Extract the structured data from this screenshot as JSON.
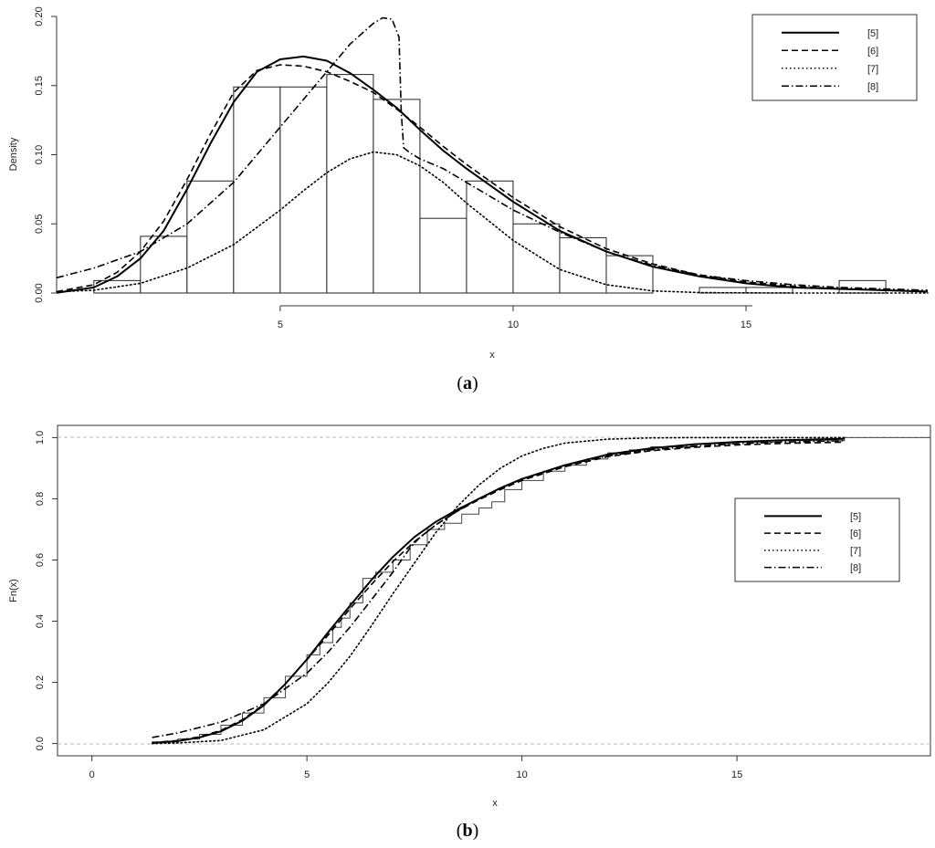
{
  "chart_data": [
    {
      "id": "a",
      "type": "histogram-with-density-curves",
      "caption_letter": "a",
      "xlabel": "x",
      "ylabel": "Density",
      "xticks": [
        5,
        10,
        15
      ],
      "yticks": [
        0.0,
        0.05,
        0.1,
        0.15,
        0.2
      ],
      "ytick_labels": [
        "0.00",
        "0.05",
        "0.10",
        "0.15",
        "0.20"
      ],
      "xlim": [
        0.2,
        18.9
      ],
      "ylim": [
        0,
        0.2
      ],
      "grid": false,
      "legend_position": "top-right",
      "histogram": {
        "bin_edges": [
          1,
          2,
          3,
          4,
          5,
          6,
          7,
          8,
          9,
          10,
          11,
          12,
          13,
          14,
          15,
          16,
          17,
          18
        ],
        "densities": [
          0.009,
          0.041,
          0.081,
          0.149,
          0.149,
          0.158,
          0.14,
          0.054,
          0.081,
          0.05,
          0.04,
          0.027,
          0.0,
          0.004,
          0.004,
          0.0,
          0.009
        ]
      },
      "series": [
        {
          "name": "[5]",
          "style": "solid",
          "x": [
            0.2,
            1,
            1.5,
            2,
            2.5,
            3,
            3.5,
            4,
            4.5,
            5,
            5.5,
            6,
            6.5,
            7,
            7.5,
            8,
            8.5,
            9,
            9.5,
            10,
            11,
            12,
            13,
            14,
            15,
            16,
            17,
            18,
            18.9
          ],
          "y": [
            0.0002,
            0.004,
            0.012,
            0.025,
            0.045,
            0.075,
            0.108,
            0.138,
            0.16,
            0.169,
            0.171,
            0.168,
            0.159,
            0.147,
            0.134,
            0.118,
            0.103,
            0.09,
            0.078,
            0.066,
            0.045,
            0.03,
            0.019,
            0.012,
            0.007,
            0.004,
            0.003,
            0.002,
            0.001
          ]
        },
        {
          "name": "[6]",
          "style": "dashed",
          "x": [
            0.2,
            1,
            1.5,
            2,
            2.5,
            3,
            3.5,
            4,
            4.5,
            5,
            5.5,
            6,
            6.5,
            7,
            7.5,
            8,
            8.5,
            9,
            9.5,
            10,
            11,
            12,
            13,
            14,
            15,
            16,
            17,
            18,
            18.9
          ],
          "y": [
            0.001,
            0.006,
            0.015,
            0.03,
            0.052,
            0.082,
            0.115,
            0.145,
            0.161,
            0.165,
            0.164,
            0.16,
            0.153,
            0.145,
            0.133,
            0.12,
            0.106,
            0.093,
            0.081,
            0.069,
            0.048,
            0.032,
            0.021,
            0.013,
            0.008,
            0.005,
            0.003,
            0.002,
            0.001
          ]
        },
        {
          "name": "[7]",
          "style": "dotted",
          "x": [
            0.2,
            1,
            2,
            3,
            4,
            5,
            5.5,
            6,
            6.5,
            7,
            7.5,
            8,
            8.5,
            9,
            10,
            11,
            12,
            13,
            14,
            15,
            16,
            17,
            18,
            18.9
          ],
          "y": [
            0.001,
            0.002,
            0.007,
            0.018,
            0.035,
            0.06,
            0.074,
            0.087,
            0.097,
            0.102,
            0.1,
            0.092,
            0.08,
            0.065,
            0.038,
            0.017,
            0.006,
            0.0015,
            0.0003,
            0.0001,
            0,
            0,
            0,
            0
          ]
        },
        {
          "name": "[8]",
          "style": "dashdot",
          "x": [
            0.2,
            1,
            2,
            3,
            4,
            5,
            5.5,
            6,
            6.5,
            7,
            7.2,
            7.4,
            7.55,
            7.6,
            7.65,
            7.8,
            8,
            8.5,
            9,
            9.5,
            10,
            11,
            12,
            13,
            14,
            15,
            16,
            17,
            18,
            18.9
          ],
          "y": [
            0.011,
            0.018,
            0.03,
            0.05,
            0.08,
            0.12,
            0.14,
            0.16,
            0.18,
            0.195,
            0.199,
            0.198,
            0.185,
            0.13,
            0.105,
            0.101,
            0.097,
            0.09,
            0.08,
            0.07,
            0.06,
            0.044,
            0.03,
            0.02,
            0.013,
            0.009,
            0.006,
            0.004,
            0.003,
            0.002
          ]
        }
      ]
    },
    {
      "id": "b",
      "type": "ecdf-with-cdf-curves",
      "caption_letter": "b",
      "xlabel": "x",
      "ylabel": "Fn(x)",
      "xticks": [
        0,
        5,
        10,
        15
      ],
      "yticks": [
        0.0,
        0.2,
        0.4,
        0.6,
        0.8,
        1.0
      ],
      "ytick_labels": [
        "0.0",
        "0.2",
        "0.4",
        "0.6",
        "0.8",
        "1.0"
      ],
      "xlim": [
        -0.8,
        19.5
      ],
      "ylim": [
        -0.04,
        1.04
      ],
      "grid": false,
      "reference_lines_y": [
        0,
        1
      ],
      "legend_position": "right",
      "ecdf": {
        "x": [
          1.4,
          2.0,
          2.5,
          3.0,
          3.5,
          4.0,
          4.5,
          5.0,
          5.3,
          5.6,
          5.8,
          6.0,
          6.3,
          6.6,
          7.0,
          7.4,
          7.8,
          8.2,
          8.6,
          9.0,
          9.3,
          9.6,
          10.0,
          10.5,
          11.0,
          11.5,
          12.0,
          12.5,
          13.0,
          14.0,
          15.0,
          16.0,
          17.5
        ],
        "y": [
          0.005,
          0.015,
          0.03,
          0.06,
          0.1,
          0.15,
          0.22,
          0.29,
          0.33,
          0.38,
          0.41,
          0.46,
          0.54,
          0.56,
          0.6,
          0.65,
          0.7,
          0.72,
          0.75,
          0.77,
          0.79,
          0.83,
          0.86,
          0.89,
          0.91,
          0.93,
          0.95,
          0.96,
          0.97,
          0.98,
          0.985,
          0.99,
          1.0
        ]
      },
      "series": [
        {
          "name": "[5]",
          "style": "solid",
          "x": [
            1.4,
            2,
            2.5,
            3,
            3.5,
            4,
            4.5,
            5,
            5.5,
            6,
            6.5,
            7,
            7.5,
            8,
            8.5,
            9,
            9.5,
            10,
            11,
            12,
            13,
            14,
            15,
            16,
            17.5
          ],
          "y": [
            0.002,
            0.008,
            0.02,
            0.04,
            0.075,
            0.125,
            0.195,
            0.275,
            0.365,
            0.45,
            0.535,
            0.61,
            0.675,
            0.725,
            0.765,
            0.8,
            0.835,
            0.865,
            0.91,
            0.945,
            0.965,
            0.978,
            0.986,
            0.991,
            0.996
          ]
        },
        {
          "name": "[6]",
          "style": "dashed",
          "x": [
            1.4,
            2,
            2.5,
            3,
            3.5,
            4,
            4.5,
            5,
            5.5,
            6,
            6.5,
            7,
            7.5,
            8,
            8.5,
            9,
            9.5,
            10,
            11,
            12,
            13,
            14,
            15,
            16,
            17.5
          ],
          "y": [
            0.003,
            0.01,
            0.022,
            0.043,
            0.078,
            0.128,
            0.196,
            0.274,
            0.356,
            0.44,
            0.52,
            0.595,
            0.66,
            0.715,
            0.76,
            0.797,
            0.83,
            0.86,
            0.905,
            0.938,
            0.957,
            0.968,
            0.976,
            0.981,
            0.985
          ]
        },
        {
          "name": "[7]",
          "style": "dotted",
          "x": [
            1.4,
            2,
            3,
            4,
            5,
            5.5,
            6,
            6.5,
            7,
            7.5,
            8,
            8.5,
            9,
            9.5,
            10,
            10.5,
            11,
            12,
            13,
            14,
            15,
            16,
            17.5
          ],
          "y": [
            0.0,
            0.002,
            0.01,
            0.045,
            0.13,
            0.2,
            0.285,
            0.385,
            0.49,
            0.59,
            0.69,
            0.775,
            0.845,
            0.9,
            0.94,
            0.965,
            0.982,
            0.995,
            0.999,
            1.0,
            1.0,
            1.0,
            1.0
          ]
        },
        {
          "name": "[8]",
          "style": "dashdot",
          "x": [
            1.4,
            2,
            3,
            4,
            5,
            5.5,
            6,
            6.5,
            7,
            7.4,
            7.6,
            8,
            8.5,
            9,
            9.5,
            10,
            11,
            12,
            13,
            14,
            15,
            16,
            17.5
          ],
          "y": [
            0.02,
            0.035,
            0.07,
            0.13,
            0.23,
            0.3,
            0.38,
            0.47,
            0.56,
            0.64,
            0.67,
            0.715,
            0.76,
            0.8,
            0.835,
            0.865,
            0.91,
            0.94,
            0.96,
            0.972,
            0.98,
            0.985,
            0.99
          ]
        }
      ]
    }
  ]
}
